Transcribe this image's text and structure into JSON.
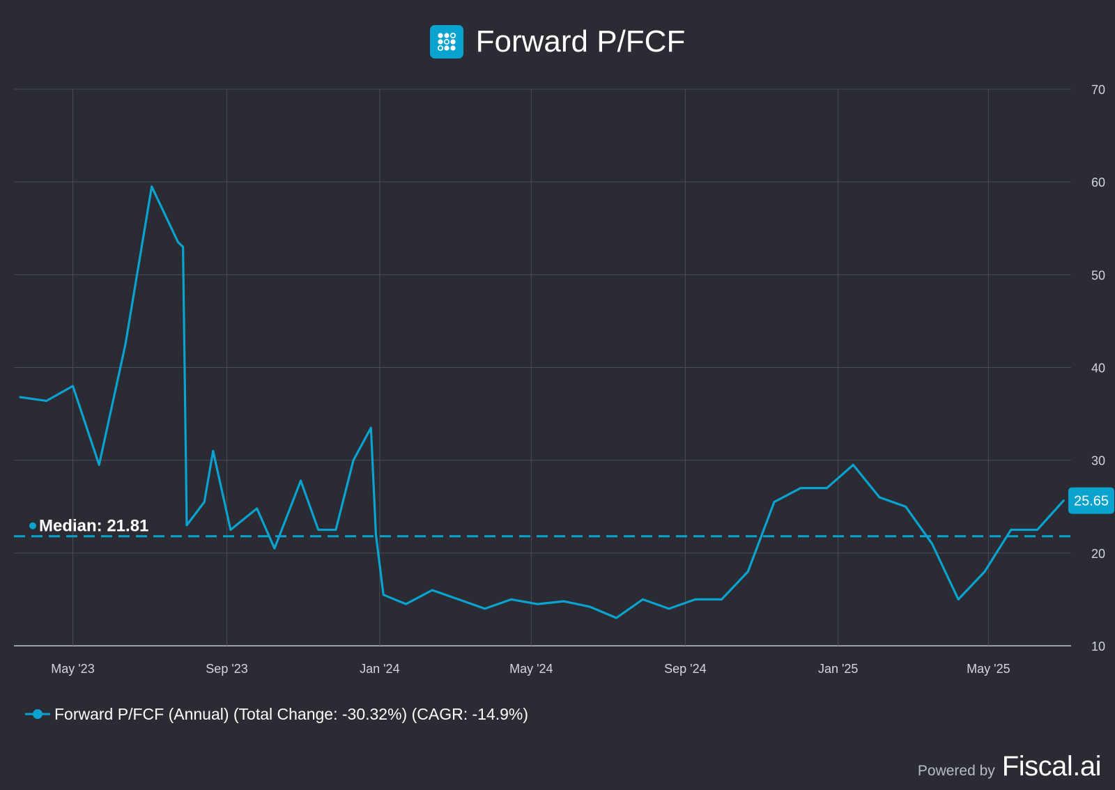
{
  "title": "Forward P/FCF",
  "accent_color": "#0aa3cf",
  "logo_icon": "dot-grid-icon",
  "legend": {
    "label": "Forward P/FCF (Annual) (Total Change: -30.32%) (CAGR: -14.9%)"
  },
  "footer": {
    "powered_by": "Powered by",
    "brand": "Fiscal.ai"
  },
  "chart_data": {
    "type": "line",
    "series": [
      {
        "name": "Forward P/FCF (Annual)",
        "color": "#0aa3cf",
        "points": [
          [
            "2023-03-20",
            36.8
          ],
          [
            "2023-04-10",
            36.4
          ],
          [
            "2023-05-01",
            38.0
          ],
          [
            "2023-05-22",
            29.5
          ],
          [
            "2023-06-12",
            42.5
          ],
          [
            "2023-07-03",
            59.5
          ],
          [
            "2023-07-24",
            53.5
          ],
          [
            "2023-07-28",
            53.0
          ],
          [
            "2023-07-31",
            23.0
          ],
          [
            "2023-08-14",
            25.5
          ],
          [
            "2023-08-21",
            31.0
          ],
          [
            "2023-09-04",
            22.5
          ],
          [
            "2023-09-25",
            24.8
          ],
          [
            "2023-10-09",
            20.5
          ],
          [
            "2023-10-30",
            27.8
          ],
          [
            "2023-11-13",
            22.5
          ],
          [
            "2023-11-27",
            22.5
          ],
          [
            "2023-12-11",
            30.0
          ],
          [
            "2023-12-25",
            33.5
          ],
          [
            "2023-12-29",
            22.0
          ],
          [
            "2024-01-04",
            15.5
          ],
          [
            "2024-01-22",
            14.5
          ],
          [
            "2024-02-12",
            16.0
          ],
          [
            "2024-03-04",
            15.0
          ],
          [
            "2024-03-25",
            14.0
          ],
          [
            "2024-04-15",
            15.0
          ],
          [
            "2024-05-06",
            14.5
          ],
          [
            "2024-05-27",
            14.8
          ],
          [
            "2024-06-17",
            14.2
          ],
          [
            "2024-07-08",
            13.0
          ],
          [
            "2024-07-29",
            15.0
          ],
          [
            "2024-08-19",
            14.0
          ],
          [
            "2024-09-09",
            15.0
          ],
          [
            "2024-09-30",
            15.0
          ],
          [
            "2024-10-21",
            18.0
          ],
          [
            "2024-11-11",
            25.5
          ],
          [
            "2024-12-02",
            27.0
          ],
          [
            "2024-12-23",
            27.0
          ],
          [
            "2025-01-13",
            29.5
          ],
          [
            "2025-02-03",
            26.0
          ],
          [
            "2025-02-24",
            25.0
          ],
          [
            "2025-03-17",
            21.0
          ],
          [
            "2025-04-07",
            15.0
          ],
          [
            "2025-04-28",
            18.0
          ],
          [
            "2025-05-19",
            22.5
          ],
          [
            "2025-06-09",
            22.5
          ],
          [
            "2025-06-30",
            25.65
          ]
        ]
      }
    ],
    "median": {
      "label": "Median: 21.81",
      "value": 21.81
    },
    "last_value_label": "25.65",
    "y_ticks": [
      "70",
      "60",
      "50",
      "40",
      "30",
      "20",
      "10"
    ],
    "ylim": [
      10,
      70
    ],
    "x_ticks": [
      {
        "label": "May '23",
        "date": "2023-05-01"
      },
      {
        "label": "Sep '23",
        "date": "2023-09-01"
      },
      {
        "label": "Jan '24",
        "date": "2024-01-01"
      },
      {
        "label": "May '24",
        "date": "2024-05-01"
      },
      {
        "label": "Sep '24",
        "date": "2024-09-01"
      },
      {
        "label": "Jan '25",
        "date": "2025-01-01"
      },
      {
        "label": "May '25",
        "date": "2025-05-01"
      }
    ],
    "xlim": [
      "2023-03-15",
      "2025-07-06"
    ],
    "grid": true,
    "legend_position": "bottom-left"
  }
}
